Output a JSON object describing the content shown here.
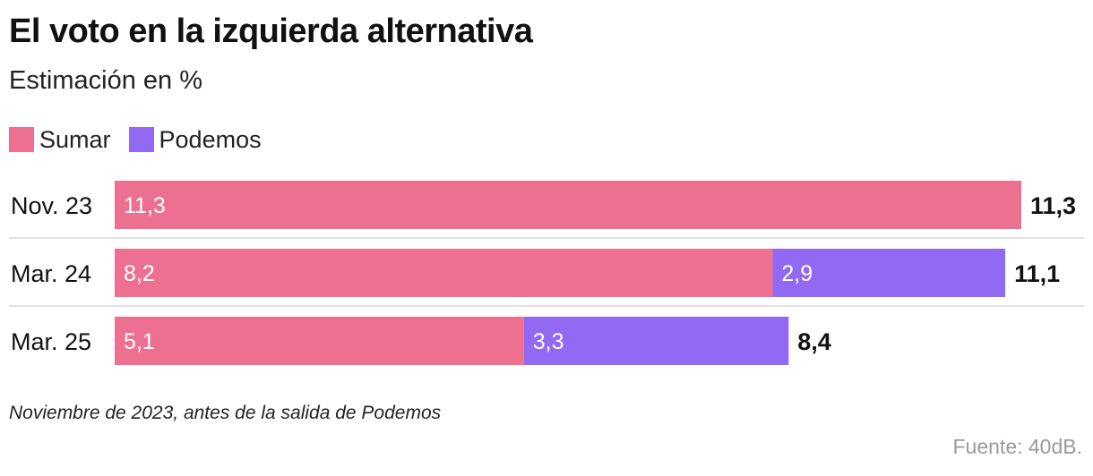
{
  "colors": {
    "sumar": "#ed7090",
    "podemos": "#9169f2",
    "divider": "#d9d9d9"
  },
  "chart_data": {
    "type": "bar",
    "orientation": "horizontal",
    "stacked": true,
    "title": "El voto en la izquierda alternativa",
    "subtitle": "Estimación en %",
    "categories": [
      "Nov. 23",
      "Mar. 24",
      "Mar. 25"
    ],
    "series": [
      {
        "name": "Sumar",
        "values": [
          11.3,
          8.2,
          5.1
        ],
        "labels": [
          "11,3",
          "8,2",
          "5,1"
        ]
      },
      {
        "name": "Podemos",
        "values": [
          null,
          2.9,
          3.3
        ],
        "labels": [
          "",
          "2,9",
          "3,3"
        ]
      }
    ],
    "totals": [
      11.3,
      11.1,
      8.4
    ],
    "total_labels": [
      "11,3",
      "11,1",
      "8,4"
    ],
    "xlim": [
      0,
      11.3
    ],
    "legend_position": "top-left",
    "footnote": "Noviembre de 2023, antes de la salida de Podemos",
    "source": "Fuente: 40dB."
  }
}
